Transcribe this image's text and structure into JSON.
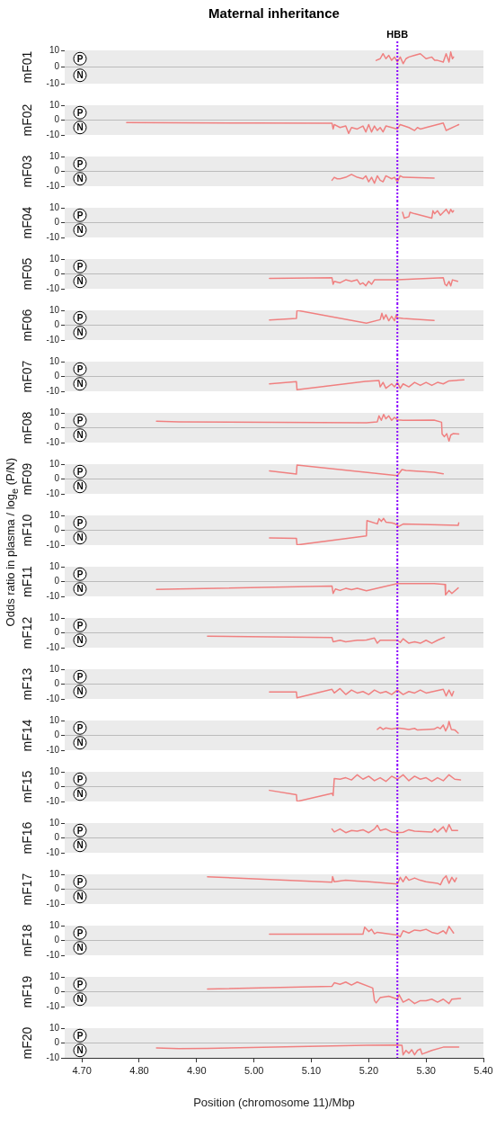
{
  "chart_data": [
    {
      "type": "line",
      "title": "Maternal inheritance",
      "ylabel": "mF01",
      "annotations": [
        "P",
        "N",
        "Odds ratio in plasma / log$_{e}$ (P/N)"
      ],
      "xlim": [
        4.67,
        5.4
      ],
      "ylim": [
        -10,
        10
      ],
      "yticks": [
        10,
        0,
        -10
      ],
      "tick_labels": "y",
      "line_style": "solid",
      "ref_lines": [
        {
          "axis": "y",
          "value": 0,
          "color": "#bbbbbb"
        },
        {
          "axis": "x",
          "value": 5.25,
          "label": "HBB",
          "color": "#8a00ff",
          "line_style": "dotted"
        }
      ],
      "series": [
        {
          "color": "#f08080",
          "x": [
            5.213,
            5.22,
            5.225,
            5.23,
            5.235,
            5.24,
            5.245,
            5.25,
            5.255,
            5.26,
            5.265,
            5.27,
            5.28,
            5.29,
            5.3,
            5.31,
            5.315,
            5.32,
            5.33,
            5.335,
            5.34,
            5.343,
            5.346,
            5.348
          ],
          "values": [
            4,
            5,
            8,
            5,
            7,
            4,
            6,
            3,
            6,
            2,
            5,
            6,
            7,
            8,
            5,
            6,
            4,
            4,
            3,
            8,
            3,
            9,
            5,
            6
          ]
        }
      ]
    },
    {
      "type": "line",
      "ylabel": "mF02",
      "annotations": [
        "P",
        "N"
      ],
      "xlim": [
        4.67,
        5.4
      ],
      "ylim": [
        -10,
        10
      ],
      "yticks": [
        10,
        0,
        -10
      ],
      "tick_labels": "y",
      "line_style": "solid",
      "ref_lines": [
        {
          "axis": "y",
          "value": 0,
          "color": "#bbbbbb"
        },
        {
          "axis": "x",
          "value": 5.25,
          "color": "#8a00ff",
          "line_style": "dotted"
        }
      ],
      "series": [
        {
          "color": "#f08080",
          "x": [
            4.778,
            5.0,
            5.136,
            5.138,
            5.14,
            5.15,
            5.16,
            5.165,
            5.17,
            5.18,
            5.19,
            5.195,
            5.2,
            5.205,
            5.21,
            5.215,
            5.22,
            5.225,
            5.23,
            5.24,
            5.25,
            5.255,
            5.27,
            5.28,
            5.285,
            5.29,
            5.3,
            5.33,
            5.335,
            5.357
          ],
          "values": [
            -1.6,
            -2,
            -2.1,
            -6,
            -3,
            -5,
            -4,
            -9,
            -5,
            -6,
            -4,
            -8,
            -3,
            -8,
            -4,
            -7,
            -5,
            -8,
            -4,
            -5,
            -6,
            -3,
            -5,
            -7,
            -5,
            -6,
            -5,
            -2,
            -7,
            -3
          ]
        }
      ]
    },
    {
      "type": "line",
      "ylabel": "mF03",
      "annotations": [
        "P",
        "N"
      ],
      "xlim": [
        4.67,
        5.4
      ],
      "ylim": [
        -10,
        10
      ],
      "yticks": [
        10,
        0,
        -10
      ],
      "tick_labels": "y",
      "line_style": "solid",
      "ref_lines": [
        {
          "axis": "y",
          "value": 0,
          "color": "#bbbbbb"
        },
        {
          "axis": "x",
          "value": 5.25,
          "color": "#8a00ff",
          "line_style": "dotted"
        }
      ],
      "series": [
        {
          "color": "#f08080",
          "x": [
            5.136,
            5.14,
            5.145,
            5.15,
            5.16,
            5.17,
            5.18,
            5.19,
            5.195,
            5.2,
            5.205,
            5.21,
            5.215,
            5.22,
            5.225,
            5.23,
            5.24,
            5.245,
            5.25,
            5.255,
            5.26,
            5.314
          ],
          "values": [
            -6,
            -4,
            -5,
            -5,
            -4,
            -2,
            -4,
            -5,
            -3,
            -7,
            -4,
            -8,
            -3,
            -6,
            -7,
            -3,
            -5,
            -4,
            -7,
            -3,
            -4,
            -4.6
          ]
        }
      ]
    },
    {
      "type": "line",
      "ylabel": "mF04",
      "annotations": [
        "P",
        "N"
      ],
      "xlim": [
        4.67,
        5.4
      ],
      "ylim": [
        -10,
        10
      ],
      "yticks": [
        10,
        0,
        -10
      ],
      "tick_labels": "y",
      "line_style": "solid",
      "ref_lines": [
        {
          "axis": "y",
          "value": 0,
          "color": "#bbbbbb"
        },
        {
          "axis": "x",
          "value": 5.25,
          "color": "#8a00ff",
          "line_style": "dotted"
        }
      ],
      "series": [
        {
          "color": "#f08080",
          "x": [
            5.259,
            5.262,
            5.27,
            5.272,
            5.28,
            5.31,
            5.312,
            5.315,
            5.32,
            5.325,
            5.33,
            5.335,
            5.34,
            5.343,
            5.346,
            5.348
          ],
          "values": [
            7,
            3,
            4,
            7,
            6,
            3,
            8,
            6,
            8,
            5,
            7,
            9,
            6,
            9,
            7,
            8
          ]
        }
      ]
    },
    {
      "type": "line",
      "ylabel": "mF05",
      "annotations": [
        "P",
        "N"
      ],
      "xlim": [
        4.67,
        5.4
      ],
      "ylim": [
        -10,
        10
      ],
      "yticks": [
        10,
        0,
        -10
      ],
      "tick_labels": "y",
      "line_style": "solid",
      "ref_lines": [
        {
          "axis": "y",
          "value": 0,
          "color": "#bbbbbb"
        },
        {
          "axis": "x",
          "value": 5.25,
          "color": "#8a00ff",
          "line_style": "dotted"
        }
      ],
      "series": [
        {
          "color": "#f08080",
          "x": [
            5.027,
            5.136,
            5.138,
            5.14,
            5.15,
            5.16,
            5.17,
            5.18,
            5.185,
            5.19,
            5.195,
            5.2,
            5.205,
            5.21,
            5.215,
            5.25,
            5.33,
            5.333,
            5.336,
            5.34,
            5.343,
            5.346,
            5.355
          ],
          "values": [
            -3,
            -2.6,
            -7,
            -5,
            -6,
            -4,
            -5,
            -4,
            -7,
            -6,
            -8,
            -5,
            -7,
            -4,
            -4,
            -4,
            -2.6,
            -7,
            -8,
            -5,
            -8,
            -4,
            -5
          ]
        }
      ]
    },
    {
      "type": "line",
      "ylabel": "mF06",
      "annotations": [
        "P",
        "N"
      ],
      "xlim": [
        4.67,
        5.4
      ],
      "ylim": [
        -10,
        10
      ],
      "yticks": [
        10,
        0,
        -10
      ],
      "tick_labels": "y",
      "line_style": "solid",
      "ref_lines": [
        {
          "axis": "y",
          "value": 0,
          "color": "#bbbbbb"
        },
        {
          "axis": "x",
          "value": 5.25,
          "color": "#8a00ff",
          "line_style": "dotted"
        }
      ],
      "series": [
        {
          "color": "#f08080",
          "x": [
            5.027,
            5.074,
            5.075,
            5.196,
            5.22,
            5.223,
            5.226,
            5.23,
            5.235,
            5.24,
            5.245,
            5.248,
            5.25,
            5.26,
            5.314
          ],
          "values": [
            3.5,
            4.6,
            10,
            1.4,
            3.7,
            8,
            4,
            7,
            3,
            6,
            3,
            7,
            5,
            4.6,
            3.2
          ]
        }
      ]
    },
    {
      "type": "line",
      "ylabel": "mF07",
      "annotations": [
        "P",
        "N"
      ],
      "xlim": [
        4.67,
        5.4
      ],
      "ylim": [
        -10,
        10
      ],
      "yticks": [
        10,
        0,
        -10
      ],
      "tick_labels": "y",
      "line_style": "solid",
      "ref_lines": [
        {
          "axis": "y",
          "value": 0,
          "color": "#bbbbbb"
        },
        {
          "axis": "x",
          "value": 5.25,
          "color": "#8a00ff",
          "line_style": "dotted"
        }
      ],
      "series": [
        {
          "color": "#f08080",
          "x": [
            5.027,
            5.074,
            5.075,
            5.194,
            5.218,
            5.22,
            5.225,
            5.23,
            5.24,
            5.245,
            5.25,
            5.255,
            5.26,
            5.27,
            5.28,
            5.29,
            5.3,
            5.31,
            5.32,
            5.33,
            5.34,
            5.366
          ],
          "values": [
            -5,
            -3.5,
            -9,
            -3.4,
            -2.8,
            -7,
            -4,
            -8,
            -5,
            -7,
            -4,
            -8,
            -5,
            -7,
            -4,
            -6,
            -4,
            -6,
            -4,
            -5,
            -3,
            -2.3
          ]
        }
      ]
    },
    {
      "type": "line",
      "ylabel": "mF08",
      "annotations": [
        "P",
        "N"
      ],
      "xlim": [
        4.67,
        5.4
      ],
      "ylim": [
        -10,
        10
      ],
      "yticks": [
        10,
        0,
        -10
      ],
      "tick_labels": "y",
      "line_style": "solid",
      "ref_lines": [
        {
          "axis": "y",
          "value": 0,
          "color": "#bbbbbb"
        },
        {
          "axis": "x",
          "value": 5.25,
          "color": "#8a00ff",
          "line_style": "dotted"
        }
      ],
      "series": [
        {
          "color": "#f08080",
          "x": [
            4.83,
            4.869,
            5.196,
            5.215,
            5.218,
            5.222,
            5.226,
            5.23,
            5.235,
            5.24,
            5.245,
            5.25,
            5.26,
            5.314,
            5.327,
            5.328,
            5.332,
            5.336,
            5.34,
            5.343,
            5.347,
            5.357
          ],
          "values": [
            4.4,
            4,
            3.4,
            4,
            8,
            5,
            9,
            6,
            8,
            5,
            7,
            5.3,
            5,
            5.1,
            3.7,
            -4.2,
            -6,
            -4,
            -9,
            -5,
            -4,
            -4.2
          ]
        }
      ]
    },
    {
      "type": "line",
      "ylabel": "mF09",
      "annotations": [
        "P",
        "N"
      ],
      "xlim": [
        4.67,
        5.4
      ],
      "ylim": [
        -10,
        10
      ],
      "yticks": [
        10,
        0,
        -10
      ],
      "tick_labels": "y",
      "line_style": "solid",
      "ref_lines": [
        {
          "axis": "y",
          "value": 0,
          "color": "#bbbbbb"
        },
        {
          "axis": "x",
          "value": 5.25,
          "color": "#8a00ff",
          "line_style": "dotted"
        }
      ],
      "series": [
        {
          "color": "#f08080",
          "x": [
            5.027,
            5.074,
            5.075,
            5.25,
            5.258,
            5.265,
            5.314,
            5.33
          ],
          "values": [
            5.5,
            3.3,
            9.4,
            2.3,
            6.4,
            5.8,
            4.5,
            3.5
          ]
        }
      ]
    },
    {
      "type": "line",
      "ylabel": "mF10",
      "annotations": [
        "P",
        "N"
      ],
      "xlim": [
        4.67,
        5.4
      ],
      "ylim": [
        -10,
        10
      ],
      "yticks": [
        10,
        0,
        -10
      ],
      "tick_labels": "y",
      "line_style": "solid",
      "ref_lines": [
        {
          "axis": "y",
          "value": 0,
          "color": "#bbbbbb"
        },
        {
          "axis": "x",
          "value": 5.25,
          "color": "#8a00ff",
          "line_style": "dotted"
        }
      ],
      "series": [
        {
          "color": "#f08080",
          "x": [
            5.027,
            5.074,
            5.075,
            5.196,
            5.197,
            5.215,
            5.218,
            5.222,
            5.226,
            5.23,
            5.24,
            5.245,
            5.25,
            5.252,
            5.26,
            5.356,
            5.357
          ],
          "values": [
            -5.2,
            -5.5,
            -9.9,
            -3.8,
            6.5,
            4.3,
            7.8,
            6,
            8,
            5.5,
            5,
            4.5,
            3.5,
            2.5,
            4.2,
            3.3,
            5
          ]
        }
      ]
    },
    {
      "type": "line",
      "ylabel": "mF11",
      "annotations": [
        "P",
        "N"
      ],
      "xlim": [
        4.67,
        5.4
      ],
      "ylim": [
        -10,
        10
      ],
      "yticks": [
        10,
        0,
        -10
      ],
      "tick_labels": "y",
      "line_style": "solid",
      "ref_lines": [
        {
          "axis": "y",
          "value": 0,
          "color": "#bbbbbb"
        },
        {
          "axis": "x",
          "value": 5.25,
          "color": "#8a00ff",
          "line_style": "dotted"
        }
      ],
      "series": [
        {
          "color": "#f08080",
          "x": [
            4.83,
            4.869,
            5.136,
            5.138,
            5.142,
            5.15,
            5.16,
            5.17,
            5.18,
            5.196,
            5.25,
            5.314,
            5.333,
            5.334,
            5.34,
            5.345,
            5.356
          ],
          "values": [
            -5.3,
            -5,
            -3,
            -8,
            -5,
            -6,
            -4.6,
            -5.5,
            -4.5,
            -6.2,
            -1.4,
            -1.3,
            -2,
            -9,
            -6,
            -8,
            -4.3
          ]
        }
      ]
    },
    {
      "type": "line",
      "ylabel": "mF12",
      "annotations": [
        "P",
        "N"
      ],
      "xlim": [
        4.67,
        5.4
      ],
      "ylim": [
        -10,
        10
      ],
      "yticks": [
        10,
        0,
        -10
      ],
      "tick_labels": "y",
      "line_style": "solid",
      "ref_lines": [
        {
          "axis": "y",
          "value": 0,
          "color": "#bbbbbb"
        },
        {
          "axis": "x",
          "value": 5.25,
          "color": "#8a00ff",
          "line_style": "dotted"
        }
      ],
      "series": [
        {
          "color": "#f08080",
          "x": [
            4.919,
            5.136,
            5.138,
            5.15,
            5.16,
            5.18,
            5.19,
            5.196,
            5.21,
            5.215,
            5.22,
            5.25,
            5.255,
            5.26,
            5.27,
            5.28,
            5.29,
            5.3,
            5.31,
            5.32,
            5.332
          ],
          "values": [
            -2.2,
            -3.2,
            -6,
            -5,
            -6,
            -5,
            -5,
            -4.8,
            -3.5,
            -7,
            -5,
            -5,
            -6.5,
            -4,
            -7,
            -6,
            -7,
            -5,
            -7,
            -5,
            -3
          ]
        }
      ]
    },
    {
      "type": "line",
      "ylabel": "mF13",
      "annotations": [
        "P",
        "N"
      ],
      "xlim": [
        4.67,
        5.4
      ],
      "ylim": [
        -10,
        10
      ],
      "yticks": [
        10,
        0,
        -10
      ],
      "tick_labels": "y",
      "line_style": "solid",
      "ref_lines": [
        {
          "axis": "y",
          "value": 0,
          "color": "#bbbbbb"
        },
        {
          "axis": "x",
          "value": 5.25,
          "color": "#8a00ff",
          "line_style": "dotted"
        }
      ],
      "series": [
        {
          "color": "#f08080",
          "x": [
            5.027,
            5.074,
            5.075,
            5.136,
            5.14,
            5.15,
            5.16,
            5.17,
            5.18,
            5.19,
            5.2,
            5.21,
            5.22,
            5.23,
            5.24,
            5.25,
            5.26,
            5.27,
            5.28,
            5.29,
            5.3,
            5.33,
            5.335,
            5.34,
            5.345,
            5.348
          ],
          "values": [
            -5.3,
            -5.3,
            -9.3,
            -3.5,
            -6,
            -3,
            -7,
            -4,
            -6,
            -5,
            -7,
            -4,
            -6,
            -5,
            -7,
            -4,
            -7,
            -5,
            -6,
            -4,
            -6,
            -3.5,
            -8,
            -4,
            -8,
            -5
          ]
        }
      ]
    },
    {
      "type": "line",
      "ylabel": "mF14",
      "annotations": [
        "P",
        "N"
      ],
      "xlim": [
        4.67,
        5.4
      ],
      "ylim": [
        -10,
        10
      ],
      "yticks": [
        10,
        0,
        -10
      ],
      "tick_labels": "y",
      "line_style": "solid",
      "ref_lines": [
        {
          "axis": "y",
          "value": 0,
          "color": "#bbbbbb"
        },
        {
          "axis": "x",
          "value": 5.25,
          "color": "#8a00ff",
          "line_style": "dotted"
        }
      ],
      "series": [
        {
          "color": "#f08080",
          "x": [
            5.215,
            5.22,
            5.225,
            5.23,
            5.24,
            5.25,
            5.26,
            5.27,
            5.28,
            5.285,
            5.314,
            5.32,
            5.325,
            5.33,
            5.334,
            5.338,
            5.34,
            5.344,
            5.35,
            5.356
          ],
          "values": [
            4,
            5.5,
            4,
            5,
            4.3,
            5,
            4.5,
            4,
            4.7,
            3.6,
            4.2,
            5.5,
            4.5,
            7,
            3,
            6,
            9.4,
            4,
            3.7,
            1.5
          ]
        }
      ]
    },
    {
      "type": "line",
      "ylabel": "mF15",
      "annotations": [
        "P",
        "N"
      ],
      "xlim": [
        4.67,
        5.4
      ],
      "ylim": [
        -10,
        10
      ],
      "yticks": [
        10,
        0,
        -10
      ],
      "tick_labels": "y",
      "line_style": "solid",
      "ref_lines": [
        {
          "axis": "y",
          "value": 0,
          "color": "#bbbbbb"
        },
        {
          "axis": "x",
          "value": 5.25,
          "color": "#8a00ff",
          "line_style": "dotted"
        }
      ],
      "series": [
        {
          "color": "#f08080",
          "x": [
            5.027,
            5.074,
            5.075,
            5.136,
            5.138,
            5.14,
            5.15,
            5.16,
            5.17,
            5.18,
            5.19,
            5.2,
            5.21,
            5.22,
            5.23,
            5.24,
            5.25,
            5.26,
            5.27,
            5.28,
            5.29,
            5.3,
            5.31,
            5.32,
            5.33,
            5.34,
            5.35,
            5.36
          ],
          "values": [
            -2.5,
            -5.5,
            -10,
            -4.5,
            -6,
            5.5,
            5,
            6,
            4.5,
            8,
            5,
            7,
            4,
            6,
            3.5,
            7,
            5,
            8,
            4,
            7,
            5,
            6,
            3.5,
            6,
            4,
            8,
            5,
            4.5
          ]
        }
      ]
    },
    {
      "type": "line",
      "ylabel": "mF16",
      "annotations": [
        "P",
        "N"
      ],
      "xlim": [
        4.67,
        5.4
      ],
      "ylim": [
        -10,
        10
      ],
      "yticks": [
        10,
        0,
        -10
      ],
      "tick_labels": "y",
      "line_style": "solid",
      "ref_lines": [
        {
          "axis": "y",
          "value": 0,
          "color": "#bbbbbb"
        },
        {
          "axis": "x",
          "value": 5.25,
          "color": "#8a00ff",
          "line_style": "dotted"
        }
      ],
      "series": [
        {
          "color": "#f08080",
          "x": [
            5.136,
            5.14,
            5.15,
            5.16,
            5.17,
            5.18,
            5.19,
            5.2,
            5.21,
            5.215,
            5.22,
            5.23,
            5.24,
            5.25,
            5.26,
            5.27,
            5.28,
            5.31,
            5.315,
            5.32,
            5.33,
            5.335,
            5.34,
            5.345,
            5.355
          ],
          "values": [
            6,
            4,
            6,
            3.5,
            5,
            4.5,
            5.5,
            3.5,
            6,
            8.5,
            5,
            6,
            4,
            3.5,
            3.8,
            5.5,
            4.5,
            4,
            6,
            4,
            7.5,
            4,
            9,
            5,
            5
          ]
        }
      ]
    },
    {
      "type": "line",
      "ylabel": "mF17",
      "annotations": [
        "P",
        "N"
      ],
      "xlim": [
        4.67,
        5.4
      ],
      "ylim": [
        -10,
        10
      ],
      "yticks": [
        10,
        0,
        -10
      ],
      "tick_labels": "y",
      "line_style": "solid",
      "ref_lines": [
        {
          "axis": "y",
          "value": 0,
          "color": "#bbbbbb"
        },
        {
          "axis": "x",
          "value": 5.25,
          "color": "#8a00ff",
          "line_style": "dotted"
        }
      ],
      "series": [
        {
          "color": "#f08080",
          "x": [
            4.919,
            5.136,
            5.137,
            5.14,
            5.16,
            5.18,
            5.196,
            5.25,
            5.255,
            5.26,
            5.265,
            5.27,
            5.28,
            5.29,
            5.3,
            5.32,
            5.325,
            5.33,
            5.335,
            5.34,
            5.345,
            5.35,
            5.353
          ],
          "values": [
            8.4,
            4.7,
            8.5,
            5,
            6,
            5.5,
            5.2,
            3.5,
            8,
            5,
            8.5,
            6,
            7.5,
            6,
            5,
            4,
            3,
            7,
            9,
            4,
            8,
            5,
            7.5
          ]
        }
      ]
    },
    {
      "type": "line",
      "ylabel": "mF18",
      "annotations": [
        "P",
        "N"
      ],
      "xlim": [
        4.67,
        5.4
      ],
      "ylim": [
        -10,
        10
      ],
      "yticks": [
        10,
        0,
        -10
      ],
      "tick_labels": "y",
      "line_style": "solid",
      "ref_lines": [
        {
          "axis": "y",
          "value": 0,
          "color": "#bbbbbb"
        },
        {
          "axis": "x",
          "value": 5.25,
          "color": "#8a00ff",
          "line_style": "dotted"
        }
      ],
      "series": [
        {
          "color": "#f08080",
          "x": [
            5.027,
            5.19,
            5.193,
            5.2,
            5.205,
            5.21,
            5.215,
            5.25,
            5.255,
            5.26,
            5.27,
            5.28,
            5.29,
            5.3,
            5.31,
            5.32,
            5.33,
            5.335,
            5.34,
            5.348
          ],
          "values": [
            4.2,
            4.2,
            9,
            6,
            7.5,
            4.5,
            5.5,
            3.6,
            2.5,
            6.5,
            5,
            7,
            6.5,
            7.5,
            5.5,
            4.5,
            6.5,
            4.5,
            9.5,
            5
          ]
        }
      ]
    },
    {
      "type": "line",
      "ylabel": "mF19",
      "annotations": [
        "P",
        "N"
      ],
      "xlim": [
        4.67,
        5.4
      ],
      "ylim": [
        -10,
        10
      ],
      "yticks": [
        10,
        0,
        -10
      ],
      "tick_labels": "y",
      "line_style": "solid",
      "ref_lines": [
        {
          "axis": "y",
          "value": 0,
          "color": "#bbbbbb"
        },
        {
          "axis": "x",
          "value": 5.25,
          "color": "#8a00ff",
          "line_style": "dotted"
        }
      ],
      "series": [
        {
          "color": "#f08080",
          "x": [
            4.919,
            5.136,
            5.14,
            5.15,
            5.16,
            5.17,
            5.18,
            5.207,
            5.21,
            5.213,
            5.22,
            5.235,
            5.25,
            5.253,
            5.26,
            5.27,
            5.28,
            5.29,
            5.3,
            5.31,
            5.32,
            5.33,
            5.34,
            5.345,
            5.36
          ],
          "values": [
            1.8,
            3.7,
            6,
            5,
            6.5,
            4.5,
            6.5,
            2.5,
            -6,
            -7.5,
            -4,
            -3,
            -5,
            -2,
            -7,
            -5,
            -8,
            -6,
            -6,
            -5,
            -7,
            -5,
            -8,
            -5,
            -4.5
          ]
        }
      ]
    },
    {
      "type": "line",
      "ylabel": "mF20",
      "xlabel": "Position (chromosome 11)/Mbp",
      "annotations": [
        "P",
        "N"
      ],
      "xlim": [
        4.67,
        5.4
      ],
      "xticks": [
        {
          "value": 4.7,
          "label": "4.70"
        },
        {
          "value": 4.8,
          "label": "4.80"
        },
        {
          "value": 4.9,
          "label": "4.90"
        },
        {
          "value": 5.0,
          "label": "5.00"
        },
        {
          "value": 5.1,
          "label": "5.10"
        },
        {
          "value": 5.2,
          "label": "5.20"
        },
        {
          "value": 5.3,
          "label": "5.30"
        },
        {
          "value": 5.4,
          "label": "5.40"
        }
      ],
      "ylim": [
        -10,
        10
      ],
      "yticks": [
        10,
        0,
        -10
      ],
      "line_style": "solid",
      "ref_lines": [
        {
          "axis": "y",
          "value": 0,
          "color": "#bbbbbb"
        },
        {
          "axis": "x",
          "value": 5.25,
          "color": "#8a00ff",
          "line_style": "dotted"
        }
      ],
      "series": [
        {
          "color": "#f08080",
          "x": [
            4.83,
            4.869,
            4.919,
            5.196,
            5.25,
            5.258,
            5.26,
            5.265,
            5.27,
            5.275,
            5.28,
            5.285,
            5.29,
            5.293,
            5.31,
            5.33,
            5.357
          ],
          "values": [
            -3.3,
            -3.8,
            -3.6,
            -1.5,
            -1.3,
            -1.5,
            -8,
            -5,
            -7,
            -4.5,
            -8,
            -5,
            -4,
            -7.5,
            -5,
            -2.8,
            -2.8
          ]
        }
      ]
    }
  ]
}
